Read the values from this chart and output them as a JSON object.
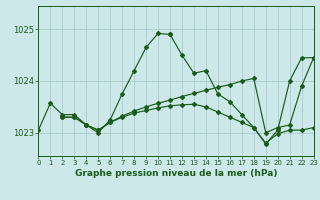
{
  "title": "Graphe pression niveau de la mer (hPa)",
  "bg": "#cce8e8",
  "grid_color": "#aacccc",
  "lc": "#1a5c1a",
  "xlim": [
    0,
    23
  ],
  "ylim": [
    1022.55,
    1025.45
  ],
  "yticks": [
    1023,
    1024,
    1025
  ],
  "xticks": [
    0,
    1,
    2,
    3,
    4,
    5,
    6,
    7,
    8,
    9,
    10,
    11,
    12,
    13,
    14,
    15,
    16,
    17,
    18,
    19,
    20,
    21,
    22,
    23
  ],
  "line1_x": [
    0,
    1,
    2,
    3,
    4,
    5,
    6,
    7,
    8,
    9,
    10,
    11
  ],
  "line1_y": [
    1023.05,
    1023.57,
    1023.35,
    1023.35,
    1023.15,
    1023.0,
    1023.25,
    1023.75,
    1024.2,
    1024.65,
    1024.92,
    1024.9
  ],
  "line2_x": [
    11,
    12,
    13,
    14,
    15,
    16,
    17,
    18,
    19,
    20,
    21,
    22,
    23
  ],
  "line2_y": [
    1024.9,
    1024.5,
    1024.15,
    1024.2,
    1023.75,
    1023.6,
    1023.35,
    1023.1,
    1022.78,
    1023.05,
    1024.0,
    1024.45,
    1024.45
  ],
  "line3_x": [
    2,
    3,
    4,
    5,
    6,
    7,
    8,
    9,
    10,
    11,
    12,
    13,
    14,
    15,
    16,
    17,
    18,
    19,
    20,
    21,
    22,
    23
  ],
  "line3_y": [
    1023.3,
    1023.3,
    1023.15,
    1023.05,
    1023.2,
    1023.32,
    1023.42,
    1023.5,
    1023.57,
    1023.63,
    1023.7,
    1023.76,
    1023.82,
    1023.88,
    1023.93,
    1024.0,
    1024.05,
    1023.0,
    1023.1,
    1023.15,
    1023.9,
    1024.45
  ],
  "line4_x": [
    2,
    3,
    4,
    5,
    6,
    7,
    8,
    9,
    10,
    11,
    12,
    13,
    14,
    15,
    16,
    17,
    18,
    19,
    20,
    21,
    22,
    23
  ],
  "line4_y": [
    1023.3,
    1023.3,
    1023.15,
    1023.05,
    1023.2,
    1023.3,
    1023.38,
    1023.43,
    1023.48,
    1023.52,
    1023.54,
    1023.55,
    1023.5,
    1023.4,
    1023.3,
    1023.2,
    1023.1,
    1022.8,
    1022.98,
    1023.05,
    1023.05,
    1023.1
  ]
}
